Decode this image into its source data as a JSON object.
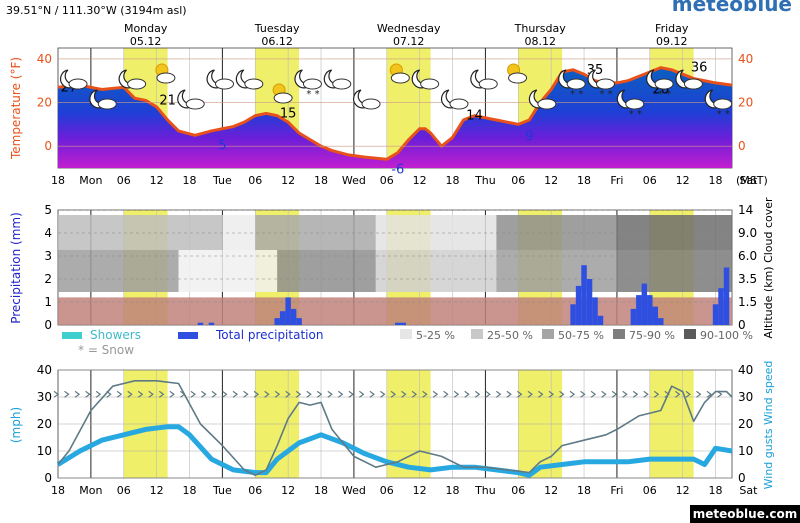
{
  "header": {
    "coordinates": "39.51°N / 111.30°W (3194m asl)",
    "brand": "meteoblue",
    "footer_brand": "meteoblue.com"
  },
  "colors": {
    "daytime_band": "#efef6a",
    "temperature_line": "#e8521a",
    "total_precipitation": "#2e4fe0",
    "showers": "#3fcfcf",
    "wind_speed": "#28a8e0",
    "wind_gusts": "#5d7a86",
    "low_cloud_band": "#c0837a",
    "left_axis_temperature": "#e8521a",
    "left_axis_precipitation": "#2222cc",
    "right_axis_wind": "#1aa0d8"
  },
  "days": [
    {
      "name": "Monday",
      "date": "05.12"
    },
    {
      "name": "Tuesday",
      "date": "06.12"
    },
    {
      "name": "Wednesday",
      "date": "07.12"
    },
    {
      "name": "Thursday",
      "date": "08.12"
    },
    {
      "name": "Friday",
      "date": "09.12"
    }
  ],
  "time_axis": {
    "labels": [
      "18",
      "Mon",
      "06",
      "12",
      "18",
      "Tue",
      "06",
      "12",
      "18",
      "Wed",
      "06",
      "12",
      "18",
      "Thu",
      "06",
      "12",
      "18",
      "Fri",
      "06",
      "12",
      "18",
      "Sat"
    ],
    "unit": "(MST)"
  },
  "weather_icons": [
    "moon-cloud-icon",
    "moon-cloud-icon",
    "moon-cloud-icon",
    "sun-cloud-icon",
    "moon-cloud-icon",
    "moon-cloud-icon",
    "moon-cloud-icon",
    "sun-cloud-icon",
    "snow-cloud-icon",
    "moon-cloud-icon",
    "moon-cloud-icon",
    "sun-cloud-icon",
    "moon-cloud-icon",
    "moon-cloud-icon",
    "moon-cloud-icon",
    "sun-cloud-icon",
    "moon-cloud-icon",
    "snow-cloud-icon",
    "snow-cloud-icon",
    "snow-cloud-icon",
    "snow-cloud-icon",
    "moon-cloud-icon",
    "snow-cloud-icon"
  ],
  "legend": {
    "showers": "Showers",
    "total_precipitation": "Total precipitation",
    "snow": "* = Snow",
    "cloud_cover": [
      "5-25 %",
      "25-50 %",
      "50-75 %",
      "75-90 %",
      "90-100 %"
    ]
  },
  "chart_data": [
    {
      "type": "area",
      "panel": "temperature",
      "ylabel": "Temperature (°F)",
      "yticks": [
        0,
        20,
        40
      ],
      "ylim": [
        -10,
        45
      ],
      "time_range_hours": [
        0,
        123
      ],
      "series": [
        {
          "name": "Temperature",
          "x": [
            0,
            4,
            8,
            12,
            14,
            16,
            18,
            20,
            22,
            25,
            28,
            32,
            34,
            36,
            38,
            40,
            42,
            44,
            46,
            48,
            50,
            53,
            56,
            60,
            62,
            64,
            66,
            67,
            68,
            70,
            72,
            74,
            76,
            78,
            80,
            82,
            84,
            86,
            88,
            90,
            92,
            94,
            96,
            98,
            100,
            102,
            104,
            106,
            108,
            110,
            112,
            114,
            116,
            118,
            120,
            123
          ],
          "values": [
            27,
            28,
            26,
            27,
            22,
            21,
            18,
            12,
            7,
            5,
            7,
            9,
            11,
            14,
            15,
            14,
            11,
            6,
            3,
            0,
            -2,
            -4,
            -5,
            -6,
            -3,
            3,
            8,
            8,
            6,
            0,
            4,
            12,
            14,
            13,
            12,
            11,
            10,
            12,
            20,
            26,
            34,
            35,
            33,
            30,
            29,
            29,
            30,
            32,
            34,
            36,
            35,
            33,
            31,
            30,
            29,
            28
          ]
        }
      ],
      "annotations": [
        {
          "text": "27",
          "x": 2,
          "y": 27
        },
        {
          "text": "21",
          "x": 20,
          "y": 21
        },
        {
          "text": "5",
          "x": 30,
          "y": 5
        },
        {
          "text": "15",
          "x": 42,
          "y": 15
        },
        {
          "text": "-6",
          "x": 62,
          "y": -6
        },
        {
          "text": "14",
          "x": 76,
          "y": 14
        },
        {
          "text": "9",
          "x": 86,
          "y": 9
        },
        {
          "text": "35",
          "x": 98,
          "y": 35
        },
        {
          "text": "26",
          "x": 110,
          "y": 26
        },
        {
          "text": "36",
          "x": 117,
          "y": 36
        }
      ],
      "grid": true
    },
    {
      "type": "bar",
      "panel": "precipitation",
      "ylabel": "Precipitation (mm)",
      "yticks": [
        0,
        1,
        2,
        3,
        4,
        5
      ],
      "ylim": [
        0,
        5
      ],
      "right_axis": {
        "label": "Altitude (km) Cloud cover",
        "ticks": [
          "0",
          "1.5",
          "3.5",
          "6.0",
          "9.0",
          "14"
        ]
      },
      "series": [
        {
          "name": "Total precipitation",
          "x": [
            26,
            28,
            40,
            41,
            42,
            43,
            44,
            62,
            63,
            94,
            95,
            96,
            97,
            98,
            99,
            105,
            106,
            107,
            108,
            109,
            110,
            120,
            121,
            122
          ],
          "values": [
            0.1,
            0.1,
            0.3,
            0.6,
            1.2,
            0.7,
            0.3,
            0.1,
            0.1,
            0.9,
            1.7,
            2.6,
            2.0,
            1.2,
            0.4,
            0.7,
            1.3,
            1.8,
            1.3,
            0.8,
            0.3,
            0.9,
            1.6,
            2.5
          ]
        }
      ],
      "cloud_cover_bands": [
        {
          "level": "high",
          "segments": [
            {
              "from": 0,
              "to": 30,
              "pct": 40
            },
            {
              "from": 30,
              "to": 36,
              "pct": 15
            },
            {
              "from": 36,
              "to": 58,
              "pct": 50
            },
            {
              "from": 58,
              "to": 80,
              "pct": 20
            },
            {
              "from": 80,
              "to": 102,
              "pct": 60
            },
            {
              "from": 102,
              "to": 123,
              "pct": 75
            }
          ]
        },
        {
          "level": "mid",
          "segments": [
            {
              "from": 0,
              "to": 22,
              "pct": 55
            },
            {
              "from": 22,
              "to": 40,
              "pct": 10
            },
            {
              "from": 40,
              "to": 58,
              "pct": 60
            },
            {
              "from": 58,
              "to": 80,
              "pct": 30
            },
            {
              "from": 80,
              "to": 102,
              "pct": 55
            },
            {
              "from": 102,
              "to": 123,
              "pct": 70
            }
          ]
        }
      ],
      "grid": true
    },
    {
      "type": "line",
      "panel": "wind",
      "ylabel": "(mph)",
      "right_ylabel": "Wind gusts  Wind speed",
      "yticks": [
        0,
        10,
        20,
        30,
        40
      ],
      "ylim": [
        0,
        40
      ],
      "series": [
        {
          "name": "Wind speed",
          "x": [
            0,
            4,
            8,
            12,
            16,
            20,
            22,
            24,
            28,
            32,
            36,
            38,
            40,
            44,
            48,
            52,
            56,
            60,
            64,
            68,
            72,
            76,
            80,
            84,
            86,
            88,
            92,
            96,
            100,
            104,
            108,
            112,
            116,
            118,
            120,
            123
          ],
          "values": [
            5,
            10,
            14,
            16,
            18,
            19,
            19,
            16,
            7,
            3,
            2,
            2,
            7,
            13,
            16,
            13,
            9,
            6,
            4,
            3,
            4,
            4,
            3,
            2,
            1,
            4,
            5,
            6,
            6,
            6,
            7,
            7,
            7,
            5,
            11,
            10
          ]
        },
        {
          "name": "Wind gusts",
          "x": [
            0,
            2,
            6,
            10,
            14,
            18,
            22,
            26,
            30,
            34,
            36,
            38,
            40,
            42,
            44,
            46,
            48,
            50,
            54,
            58,
            62,
            66,
            70,
            74,
            78,
            82,
            86,
            88,
            90,
            92,
            96,
            100,
            102,
            106,
            110,
            112,
            114,
            116,
            118,
            120,
            122,
            123
          ],
          "values": [
            5,
            10,
            25,
            34,
            36,
            36,
            35,
            20,
            12,
            3,
            1,
            3,
            12,
            22,
            28,
            27,
            28,
            18,
            8,
            4,
            6,
            10,
            8,
            4,
            4,
            3,
            2,
            6,
            8,
            12,
            14,
            16,
            18,
            23,
            25,
            34,
            32,
            21,
            28,
            32,
            32,
            30
          ]
        }
      ],
      "arrows": {
        "y": 31,
        "count": 64
      },
      "grid": true
    }
  ]
}
